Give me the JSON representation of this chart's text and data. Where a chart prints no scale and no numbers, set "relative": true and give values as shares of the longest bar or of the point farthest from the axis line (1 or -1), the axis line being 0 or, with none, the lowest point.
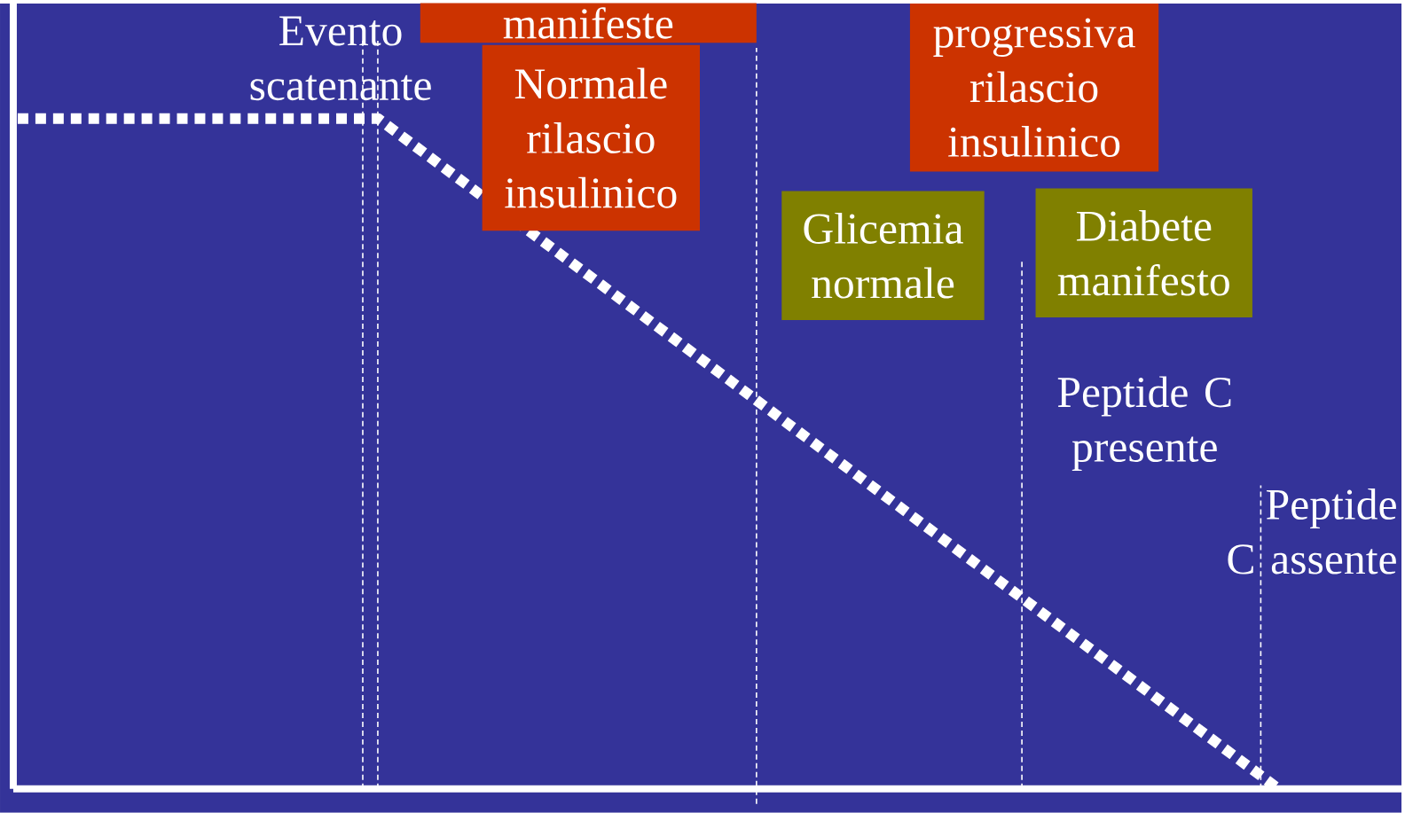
{
  "chart_data": {
    "type": "line",
    "relative": true,
    "categories": [
      null,
      null,
      null,
      null,
      null,
      null,
      null,
      null
    ],
    "series": [
      {
        "color": "#ffffff",
        "values": [
          1,
          1,
          1,
          0.8,
          0.6,
          0.4,
          0.2,
          0
        ]
      }
    ],
    "line_style": "dotted",
    "marker": "none",
    "annotations": [
      "Evento scatenante",
      "manifeste",
      "Normale rilascio insulinico",
      "progressiva rilascio insulinico",
      "Glicemia normale",
      "Diabete manifesto",
      "Peptide C presente",
      "Peptide C assente"
    ]
  }
}
